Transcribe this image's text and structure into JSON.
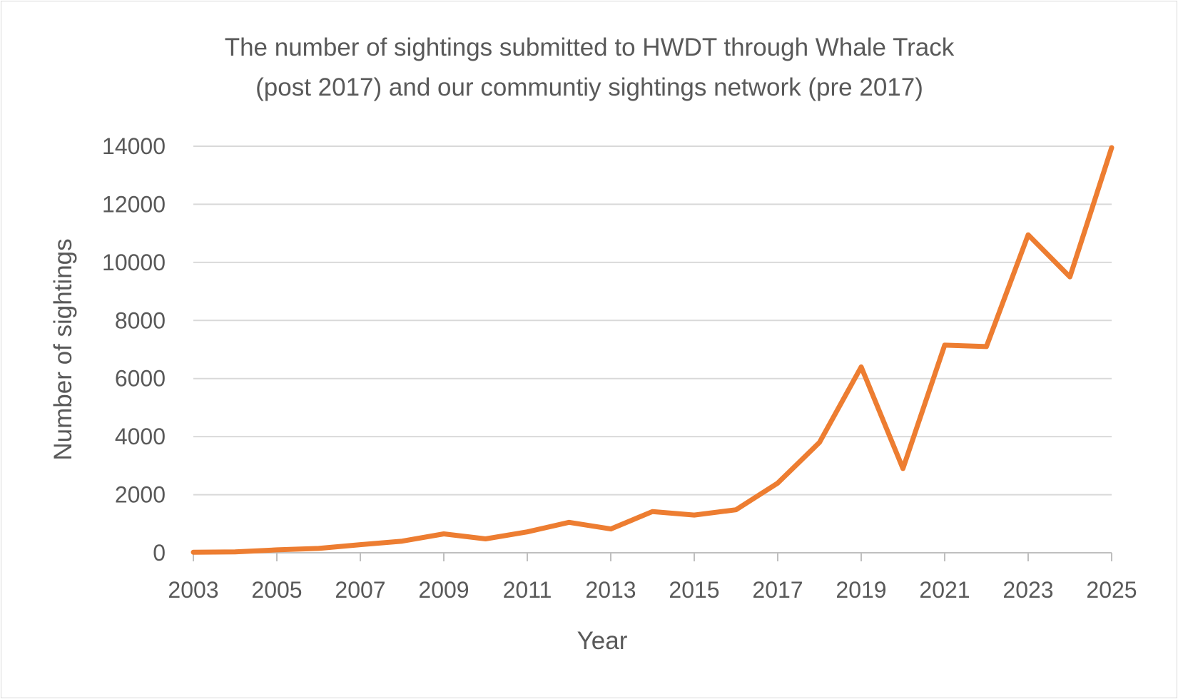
{
  "chart_data": {
    "type": "line",
    "title_lines": [
      "The number of sightings submitted to HWDT through Whale Track",
      "(post 2017) and our communtiy sightings network (pre 2017)"
    ],
    "xlabel": "Year",
    "ylabel": "Number of sightings",
    "x": [
      2003,
      2004,
      2005,
      2006,
      2007,
      2008,
      2009,
      2010,
      2011,
      2012,
      2013,
      2014,
      2015,
      2016,
      2017,
      2018,
      2019,
      2020,
      2021,
      2022,
      2023,
      2024,
      2025
    ],
    "x_tick_labels": [
      "2003",
      "2005",
      "2007",
      "2009",
      "2011",
      "2013",
      "2015",
      "2017",
      "2019",
      "2021",
      "2023",
      "2025"
    ],
    "y_tick_labels": [
      "0",
      "2000",
      "4000",
      "6000",
      "8000",
      "10000",
      "12000",
      "14000"
    ],
    "ylim": [
      0,
      14000
    ],
    "xlim": [
      2003,
      2025
    ],
    "grid": true,
    "series": [
      {
        "color": "#ED7D31",
        "values": [
          20,
          30,
          100,
          150,
          280,
          400,
          650,
          480,
          720,
          1050,
          820,
          1420,
          1300,
          1480,
          2400,
          3800,
          6400,
          2900,
          7150,
          7100,
          10950,
          9500,
          13950
        ]
      }
    ]
  }
}
